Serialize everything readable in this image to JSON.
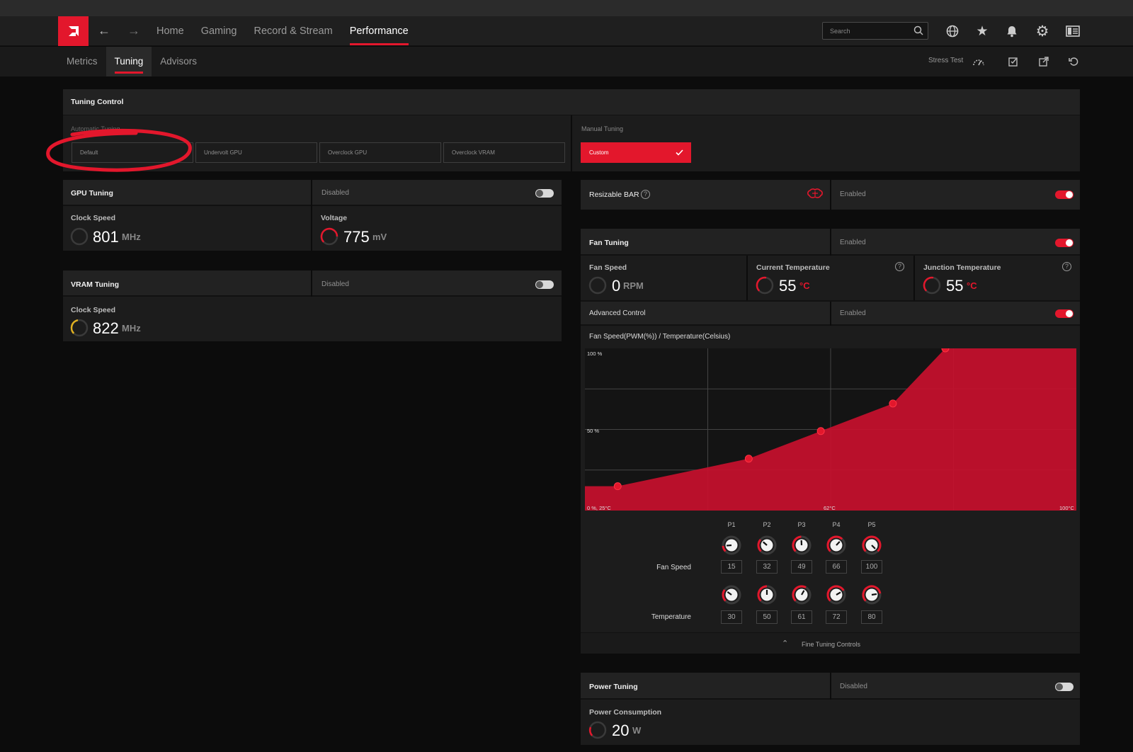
{
  "nav": {
    "links": [
      "Home",
      "Gaming",
      "Record & Stream",
      "Performance"
    ],
    "active": "Performance",
    "search_placeholder": "Search"
  },
  "subnav": {
    "tabs": [
      "Metrics",
      "Tuning",
      "Advisors"
    ],
    "active": "Tuning",
    "stress_test": "Stress Test"
  },
  "tuning_control": {
    "title": "Tuning Control",
    "automatic_label": "Automatic Tuning",
    "automatic_options": [
      "Default",
      "Undervolt GPU",
      "Overclock GPU",
      "Overclock VRAM"
    ],
    "manual_label": "Manual Tuning",
    "manual_option": "Custom"
  },
  "gpu_tuning": {
    "title": "GPU Tuning",
    "status": "Disabled",
    "clock_label": "Clock Speed",
    "clock_value": "801",
    "clock_unit": "MHz",
    "voltage_label": "Voltage",
    "voltage_value": "775",
    "voltage_unit": "mV"
  },
  "vram_tuning": {
    "title": "VRAM Tuning",
    "status": "Disabled",
    "clock_label": "Clock Speed",
    "clock_value": "822",
    "clock_unit": "MHz"
  },
  "resizable_bar": {
    "title": "Resizable BAR",
    "status": "Enabled"
  },
  "fan_tuning": {
    "title": "Fan Tuning",
    "status": "Enabled",
    "fan_speed_label": "Fan Speed",
    "fan_speed_value": "0",
    "fan_speed_unit": "RPM",
    "current_temp_label": "Current Temperature",
    "current_temp_value": "55",
    "junction_temp_label": "Junction Temperature",
    "junction_temp_value": "55",
    "temp_unit": "°C",
    "advanced_label": "Advanced Control",
    "advanced_status": "Enabled",
    "chart_title": "Fan Speed(PWM(%)) / Temperature(Celsius)",
    "points": [
      "P1",
      "P2",
      "P3",
      "P4",
      "P5"
    ],
    "fan_speed_row_label": "Fan Speed",
    "temperature_row_label": "Temperature",
    "fine_tuning": "Fine Tuning Controls"
  },
  "chart_data": {
    "type": "area",
    "x": [
      30,
      50,
      61,
      72,
      80
    ],
    "values": [
      15,
      32,
      49,
      66,
      100
    ],
    "xlim": [
      25,
      100
    ],
    "ylim": [
      0,
      100
    ],
    "tick_labels": {
      "y_top": "100 %",
      "y_mid": "50 %",
      "origin": "0 %, 25°C",
      "x_mid": "62°C",
      "x_max": "100°C"
    },
    "color": "#c8102e",
    "grid": true
  },
  "power_tuning": {
    "title": "Power Tuning",
    "status": "Disabled",
    "consumption_label": "Power Consumption",
    "consumption_value": "20",
    "consumption_unit": "W"
  },
  "colors": {
    "accent": "#e3172c",
    "gauge_yellow": "#e0b020"
  }
}
